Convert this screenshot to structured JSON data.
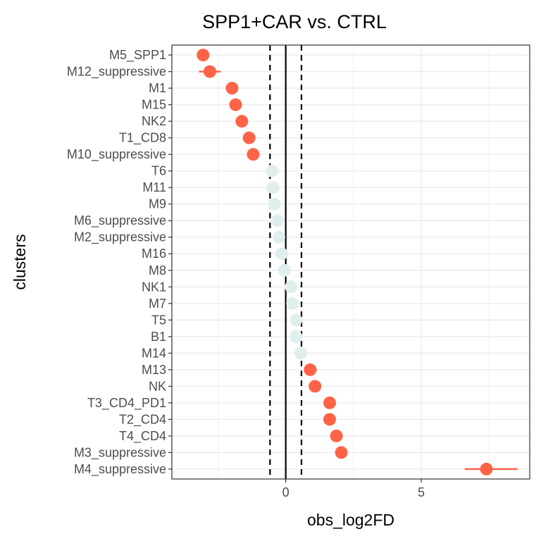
{
  "chart_data": {
    "type": "forest",
    "title": "SPP1+CAR vs. CTRL",
    "xlabel": "obs_log2FD",
    "ylabel": "clusters",
    "xlim": [
      -4.2,
      9.0
    ],
    "xticks": [
      0,
      5
    ],
    "reference_lines": {
      "solid": 0,
      "dashed": [
        -0.58,
        0.58
      ]
    },
    "colors": {
      "significant": "#FF6347",
      "not_significant": "#E0EEEE"
    },
    "points": [
      {
        "cluster": "M5_SPP1",
        "value": -3.05,
        "low": -3.25,
        "high": -2.85,
        "significant": true
      },
      {
        "cluster": "M12_suppressive",
        "value": -2.8,
        "low": -3.2,
        "high": -2.4,
        "significant": true
      },
      {
        "cluster": "M1",
        "value": -1.98,
        "low": -2.1,
        "high": -1.86,
        "significant": true
      },
      {
        "cluster": "M15",
        "value": -1.85,
        "low": -1.97,
        "high": -1.73,
        "significant": true
      },
      {
        "cluster": "NK2",
        "value": -1.62,
        "low": -1.74,
        "high": -1.5,
        "significant": true
      },
      {
        "cluster": "T1_CD8",
        "value": -1.35,
        "low": -1.47,
        "high": -1.23,
        "significant": true
      },
      {
        "cluster": "M10_suppressive",
        "value": -1.2,
        "low": -1.32,
        "high": -1.08,
        "significant": true
      },
      {
        "cluster": "T6",
        "value": -0.5,
        "low": -0.58,
        "high": -0.42,
        "significant": false
      },
      {
        "cluster": "M11",
        "value": -0.47,
        "low": -0.55,
        "high": -0.39,
        "significant": false
      },
      {
        "cluster": "M9",
        "value": -0.42,
        "low": -0.5,
        "high": -0.34,
        "significant": false
      },
      {
        "cluster": "M6_suppressive",
        "value": -0.3,
        "low": -0.38,
        "high": -0.22,
        "significant": false
      },
      {
        "cluster": "M2_suppressive",
        "value": -0.25,
        "low": -0.33,
        "high": -0.17,
        "significant": false
      },
      {
        "cluster": "M16",
        "value": -0.15,
        "low": -0.23,
        "high": -0.07,
        "significant": false
      },
      {
        "cluster": "M8",
        "value": -0.05,
        "low": -0.13,
        "high": 0.03,
        "significant": false
      },
      {
        "cluster": "NK1",
        "value": 0.2,
        "low": 0.12,
        "high": 0.28,
        "significant": false
      },
      {
        "cluster": "M7",
        "value": 0.25,
        "low": 0.17,
        "high": 0.33,
        "significant": false
      },
      {
        "cluster": "T5",
        "value": 0.38,
        "low": 0.3,
        "high": 0.46,
        "significant": false
      },
      {
        "cluster": "B1",
        "value": 0.38,
        "low": 0.3,
        "high": 0.46,
        "significant": false
      },
      {
        "cluster": "M14",
        "value": 0.55,
        "low": 0.47,
        "high": 0.63,
        "significant": false
      },
      {
        "cluster": "M13",
        "value": 0.9,
        "low": 0.75,
        "high": 1.15,
        "significant": true
      },
      {
        "cluster": "NK",
        "value": 1.08,
        "low": 0.96,
        "high": 1.2,
        "significant": true
      },
      {
        "cluster": "T3_CD4_PD1",
        "value": 1.62,
        "low": 1.5,
        "high": 1.74,
        "significant": true
      },
      {
        "cluster": "T2_CD4",
        "value": 1.62,
        "low": 1.5,
        "high": 1.74,
        "significant": true
      },
      {
        "cluster": "T4_CD4",
        "value": 1.87,
        "low": 1.75,
        "high": 1.99,
        "significant": true
      },
      {
        "cluster": "M3_suppressive",
        "value": 2.05,
        "low": 1.93,
        "high": 2.17,
        "significant": true
      },
      {
        "cluster": "M4_suppressive",
        "value": 7.4,
        "low": 6.6,
        "high": 8.55,
        "significant": true
      }
    ]
  }
}
